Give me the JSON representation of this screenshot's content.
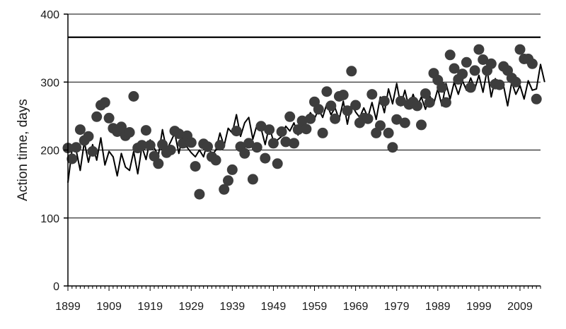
{
  "chart_data": {
    "type": "scatter",
    "title": "",
    "xlabel": "",
    "ylabel": "Action time, days",
    "xlim": [
      1899,
      2014
    ],
    "ylim": [
      0,
      400
    ],
    "x_ticks": [
      1899,
      1909,
      1919,
      1929,
      1939,
      1949,
      1959,
      1969,
      1979,
      1989,
      1999,
      2009
    ],
    "y_ticks": [
      0,
      100,
      200,
      300,
      400
    ],
    "grid": "horizontal",
    "legend": "none",
    "reference_line": {
      "y": 366
    },
    "colors": {
      "points": "#3d3d3d",
      "line": "#000000",
      "grid": "#000000",
      "axis": "#000000"
    },
    "series": [
      {
        "type": "scatter",
        "points": [
          [
            1899,
            203
          ],
          [
            1900,
            187
          ],
          [
            1901,
            204
          ],
          [
            1902,
            230
          ],
          [
            1903,
            214
          ],
          [
            1904,
            220
          ],
          [
            1905,
            198
          ],
          [
            1906,
            249
          ],
          [
            1907,
            266
          ],
          [
            1908,
            270
          ],
          [
            1909,
            247
          ],
          [
            1910,
            232
          ],
          [
            1911,
            227
          ],
          [
            1912,
            234
          ],
          [
            1913,
            221
          ],
          [
            1914,
            226
          ],
          [
            1915,
            279
          ],
          [
            1916,
            203
          ],
          [
            1917,
            207
          ],
          [
            1918,
            229
          ],
          [
            1919,
            207
          ],
          [
            1920,
            191
          ],
          [
            1921,
            180
          ],
          [
            1922,
            208
          ],
          [
            1923,
            196
          ],
          [
            1924,
            200
          ],
          [
            1925,
            228
          ],
          [
            1926,
            224
          ],
          [
            1927,
            210
          ],
          [
            1928,
            221
          ],
          [
            1929,
            211
          ],
          [
            1930,
            176
          ],
          [
            1931,
            135
          ],
          [
            1932,
            209
          ],
          [
            1933,
            205
          ],
          [
            1934,
            190
          ],
          [
            1935,
            185
          ],
          [
            1936,
            207
          ],
          [
            1937,
            142
          ],
          [
            1938,
            155
          ],
          [
            1939,
            171
          ],
          [
            1940,
            228
          ],
          [
            1941,
            205
          ],
          [
            1942,
            195
          ],
          [
            1943,
            210
          ],
          [
            1944,
            157
          ],
          [
            1945,
            204
          ],
          [
            1946,
            235
          ],
          [
            1947,
            188
          ],
          [
            1948,
            230
          ],
          [
            1949,
            210
          ],
          [
            1950,
            180
          ],
          [
            1951,
            227
          ],
          [
            1952,
            212
          ],
          [
            1953,
            249
          ],
          [
            1954,
            210
          ],
          [
            1955,
            230
          ],
          [
            1956,
            243
          ],
          [
            1957,
            231
          ],
          [
            1958,
            246
          ],
          [
            1959,
            271
          ],
          [
            1960,
            260
          ],
          [
            1961,
            225
          ],
          [
            1962,
            286
          ],
          [
            1963,
            265
          ],
          [
            1964,
            246
          ],
          [
            1965,
            279
          ],
          [
            1966,
            281
          ],
          [
            1967,
            258
          ],
          [
            1968,
            316
          ],
          [
            1969,
            266
          ],
          [
            1970,
            240
          ],
          [
            1971,
            247
          ],
          [
            1972,
            246
          ],
          [
            1973,
            282
          ],
          [
            1974,
            225
          ],
          [
            1975,
            236
          ],
          [
            1976,
            272
          ],
          [
            1977,
            225
          ],
          [
            1978,
            204
          ],
          [
            1979,
            245
          ],
          [
            1980,
            272
          ],
          [
            1981,
            240
          ],
          [
            1982,
            267
          ],
          [
            1983,
            271
          ],
          [
            1984,
            265
          ],
          [
            1985,
            237
          ],
          [
            1986,
            283
          ],
          [
            1987,
            270
          ],
          [
            1988,
            313
          ],
          [
            1989,
            303
          ],
          [
            1990,
            292
          ],
          [
            1991,
            270
          ],
          [
            1992,
            340
          ],
          [
            1993,
            320
          ],
          [
            1994,
            304
          ],
          [
            1995,
            312
          ],
          [
            1996,
            329
          ],
          [
            1997,
            292
          ],
          [
            1998,
            317
          ],
          [
            1999,
            348
          ],
          [
            2000,
            333
          ],
          [
            2001,
            317
          ],
          [
            2002,
            327
          ],
          [
            2003,
            297
          ],
          [
            2004,
            296
          ],
          [
            2005,
            323
          ],
          [
            2006,
            317
          ],
          [
            2007,
            306
          ],
          [
            2008,
            300
          ],
          [
            2009,
            348
          ],
          [
            2010,
            334
          ],
          [
            2011,
            334
          ],
          [
            2012,
            327
          ],
          [
            2013,
            275
          ]
        ]
      },
      {
        "type": "line",
        "points": [
          [
            1899,
            152
          ],
          [
            1900,
            200
          ],
          [
            1901,
            200
          ],
          [
            1902,
            170
          ],
          [
            1903,
            212
          ],
          [
            1904,
            182
          ],
          [
            1905,
            208
          ],
          [
            1906,
            185
          ],
          [
            1907,
            218
          ],
          [
            1908,
            178
          ],
          [
            1909,
            198
          ],
          [
            1910,
            190
          ],
          [
            1911,
            162
          ],
          [
            1912,
            195
          ],
          [
            1913,
            175
          ],
          [
            1914,
            170
          ],
          [
            1915,
            198
          ],
          [
            1916,
            165
          ],
          [
            1917,
            205
          ],
          [
            1918,
            186
          ],
          [
            1919,
            215
          ],
          [
            1920,
            203
          ],
          [
            1921,
            192
          ],
          [
            1922,
            230
          ],
          [
            1923,
            200
          ],
          [
            1924,
            212
          ],
          [
            1925,
            225
          ],
          [
            1926,
            195
          ],
          [
            1927,
            222
          ],
          [
            1928,
            204
          ],
          [
            1929,
            196
          ],
          [
            1930,
            190
          ],
          [
            1931,
            200
          ],
          [
            1932,
            190
          ],
          [
            1933,
            212
          ],
          [
            1934,
            192
          ],
          [
            1935,
            200
          ],
          [
            1936,
            225
          ],
          [
            1937,
            206
          ],
          [
            1938,
            232
          ],
          [
            1939,
            225
          ],
          [
            1940,
            252
          ],
          [
            1941,
            220
          ],
          [
            1942,
            240
          ],
          [
            1943,
            248
          ],
          [
            1944,
            216
          ],
          [
            1945,
            237
          ],
          [
            1946,
            232
          ],
          [
            1947,
            208
          ],
          [
            1948,
            235
          ],
          [
            1949,
            213
          ],
          [
            1950,
            215
          ],
          [
            1951,
            220
          ],
          [
            1952,
            235
          ],
          [
            1953,
            228
          ],
          [
            1954,
            240
          ],
          [
            1955,
            222
          ],
          [
            1956,
            245
          ],
          [
            1957,
            242
          ],
          [
            1958,
            255
          ],
          [
            1959,
            246
          ],
          [
            1960,
            260
          ],
          [
            1961,
            248
          ],
          [
            1962,
            268
          ],
          [
            1963,
            252
          ],
          [
            1964,
            262
          ],
          [
            1965,
            245
          ],
          [
            1966,
            272
          ],
          [
            1967,
            238
          ],
          [
            1968,
            268
          ],
          [
            1969,
            256
          ],
          [
            1970,
            248
          ],
          [
            1971,
            262
          ],
          [
            1972,
            248
          ],
          [
            1973,
            270
          ],
          [
            1974,
            245
          ],
          [
            1975,
            278
          ],
          [
            1976,
            255
          ],
          [
            1977,
            290
          ],
          [
            1978,
            268
          ],
          [
            1979,
            298
          ],
          [
            1980,
            265
          ],
          [
            1981,
            288
          ],
          [
            1982,
            262
          ],
          [
            1983,
            282
          ],
          [
            1984,
            264
          ],
          [
            1985,
            278
          ],
          [
            1986,
            260
          ],
          [
            1987,
            280
          ],
          [
            1988,
            268
          ],
          [
            1989,
            290
          ],
          [
            1990,
            265
          ],
          [
            1991,
            298
          ],
          [
            1992,
            275
          ],
          [
            1993,
            300
          ],
          [
            1994,
            282
          ],
          [
            1995,
            302
          ],
          [
            1996,
            288
          ],
          [
            1997,
            306
          ],
          [
            1998,
            290
          ],
          [
            1999,
            310
          ],
          [
            2000,
            285
          ],
          [
            2001,
            318
          ],
          [
            2002,
            278
          ],
          [
            2003,
            305
          ],
          [
            2004,
            290
          ],
          [
            2005,
            295
          ],
          [
            2006,
            265
          ],
          [
            2007,
            300
          ],
          [
            2008,
            282
          ],
          [
            2009,
            295
          ],
          [
            2010,
            275
          ],
          [
            2011,
            302
          ],
          [
            2012,
            288
          ],
          [
            2013,
            290
          ],
          [
            2014,
            326
          ],
          [
            2015,
            300
          ]
        ]
      }
    ]
  }
}
